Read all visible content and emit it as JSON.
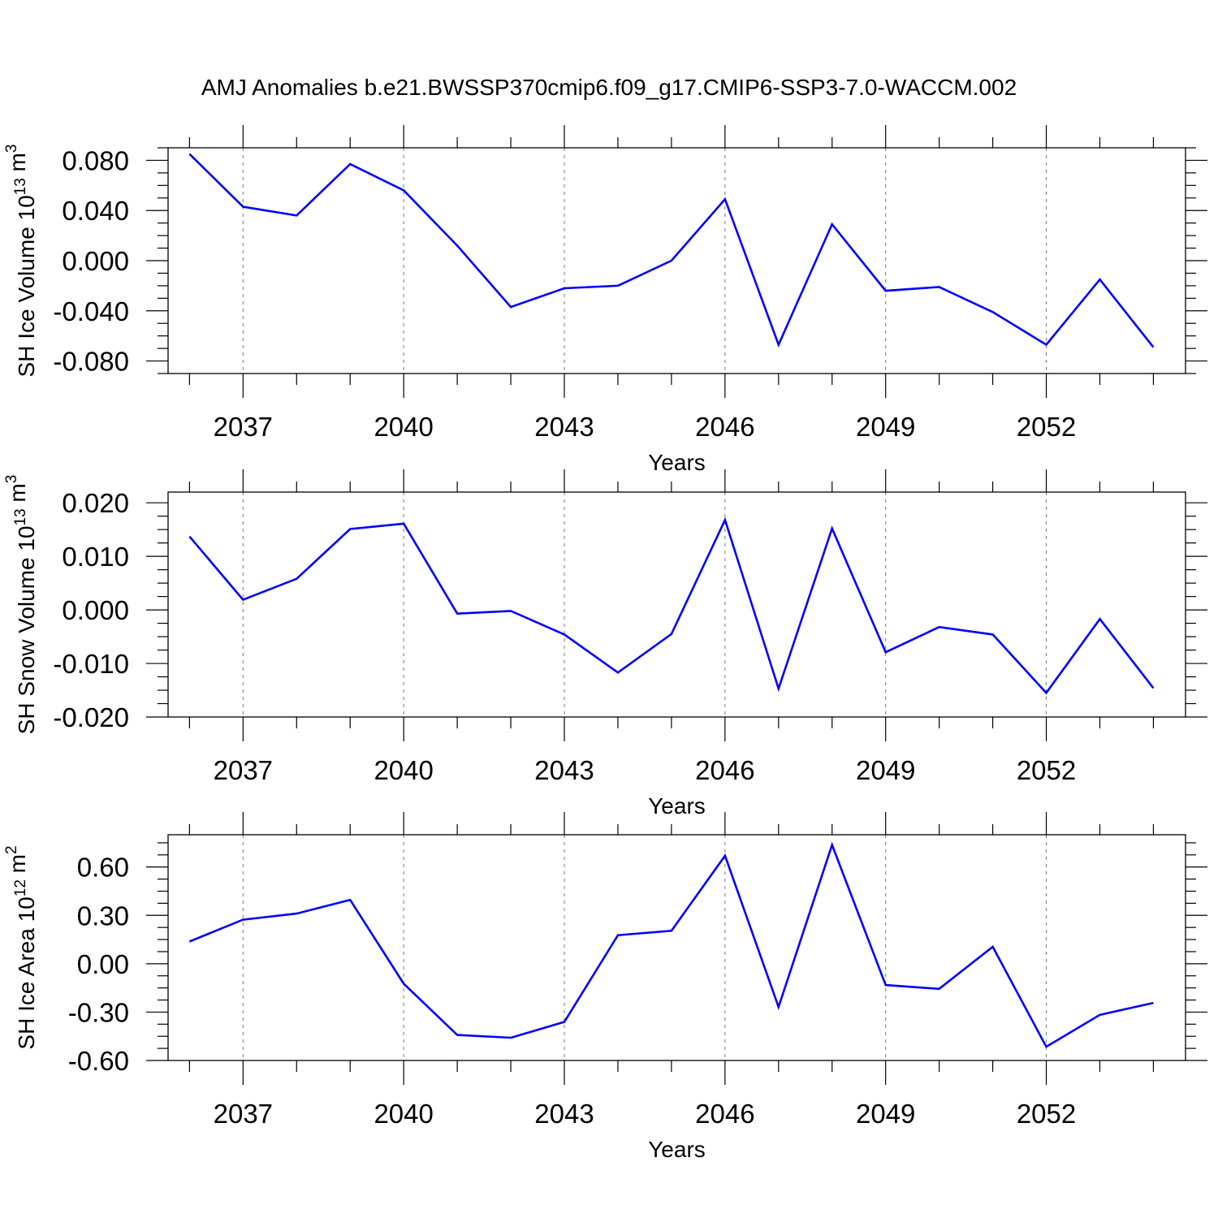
{
  "title": "AMJ Anomalies b.e21.BWSSP370cmip6.f09_g17.CMIP6-SSP3-7.0-WACCM.002",
  "colors": {
    "line": "#0000ff",
    "axis": "#000000",
    "grid": "#777777"
  },
  "chart_data": [
    {
      "type": "line",
      "ylabel": "SH Ice Volume",
      "yunit_base": "10",
      "yunit_exp": "13",
      "yunit_suffix": "m",
      "yunit_suffix_exp": "3",
      "xlabel": "Years",
      "xlim": [
        2035.6,
        2054.6
      ],
      "ylim": [
        -0.09,
        0.09
      ],
      "yticks": [
        -0.08,
        -0.04,
        0.0,
        0.04,
        0.08
      ],
      "ytick_labels": [
        "-0.080",
        "-0.040",
        "0.000",
        "0.040",
        "0.080"
      ],
      "xticks": [
        2037,
        2040,
        2043,
        2046,
        2049,
        2052
      ],
      "xtick_labels": [
        "2037",
        "2040",
        "2043",
        "2046",
        "2049",
        "2052"
      ],
      "x": [
        2036,
        2037,
        2038,
        2039,
        2040,
        2041,
        2042,
        2043,
        2044,
        2045,
        2046,
        2047,
        2048,
        2049,
        2050,
        2051,
        2052,
        2053,
        2054
      ],
      "series": [
        {
          "values": [
            0.085,
            0.043,
            0.036,
            0.077,
            0.056,
            0.012,
            -0.037,
            -0.022,
            -0.02,
            0.0,
            0.049,
            -0.067,
            0.029,
            -0.024,
            -0.021,
            -0.041,
            -0.067,
            -0.015,
            -0.069
          ]
        }
      ],
      "grid": "dashed vertical at labeled years"
    },
    {
      "type": "line",
      "ylabel": "SH Snow Volume",
      "yunit_base": "10",
      "yunit_exp": "13",
      "yunit_suffix": "m",
      "yunit_suffix_exp": "3",
      "xlabel": "Years",
      "xlim": [
        2035.6,
        2054.6
      ],
      "ylim": [
        -0.02,
        0.022
      ],
      "yticks": [
        -0.02,
        -0.01,
        0.0,
        0.01,
        0.02
      ],
      "ytick_labels": [
        "-0.020",
        "-0.010",
        "0.000",
        "0.010",
        "0.020"
      ],
      "xticks": [
        2037,
        2040,
        2043,
        2046,
        2049,
        2052
      ],
      "xtick_labels": [
        "2037",
        "2040",
        "2043",
        "2046",
        "2049",
        "2052"
      ],
      "x": [
        2036,
        2037,
        2038,
        2039,
        2040,
        2041,
        2042,
        2043,
        2044,
        2045,
        2046,
        2047,
        2048,
        2049,
        2050,
        2051,
        2052,
        2053,
        2054
      ],
      "series": [
        {
          "values": [
            0.0137,
            0.0019,
            0.0058,
            0.0151,
            0.0161,
            -0.0007,
            -0.0002,
            -0.0046,
            -0.0117,
            -0.0045,
            0.0168,
            -0.0147,
            0.0152,
            -0.0079,
            -0.0032,
            -0.0046,
            -0.0155,
            -0.0017,
            -0.0146
          ]
        }
      ],
      "grid": "dashed vertical at labeled years"
    },
    {
      "type": "line",
      "ylabel": "SH Ice Area",
      "yunit_base": "10",
      "yunit_exp": "12",
      "yunit_suffix": "m",
      "yunit_suffix_exp": "2",
      "xlabel": "Years",
      "xlim": [
        2035.6,
        2054.6
      ],
      "ylim": [
        -0.6,
        0.8
      ],
      "yticks": [
        -0.6,
        -0.3,
        0.0,
        0.3,
        0.6
      ],
      "ytick_labels": [
        "-0.60",
        "-0.30",
        "0.00",
        "0.30",
        "0.60"
      ],
      "xticks": [
        2037,
        2040,
        2043,
        2046,
        2049,
        2052
      ],
      "xtick_labels": [
        "2037",
        "2040",
        "2043",
        "2046",
        "2049",
        "2052"
      ],
      "x": [
        2036,
        2037,
        2038,
        2039,
        2040,
        2041,
        2042,
        2043,
        2044,
        2045,
        2046,
        2047,
        2048,
        2049,
        2050,
        2051,
        2052,
        2053,
        2054
      ],
      "series": [
        {
          "values": [
            0.138,
            0.273,
            0.311,
            0.396,
            -0.124,
            -0.442,
            -0.459,
            -0.361,
            0.177,
            0.204,
            0.67,
            -0.268,
            0.737,
            -0.132,
            -0.156,
            0.105,
            -0.515,
            -0.317,
            -0.243
          ]
        }
      ],
      "grid": "dashed vertical at labeled years"
    }
  ]
}
